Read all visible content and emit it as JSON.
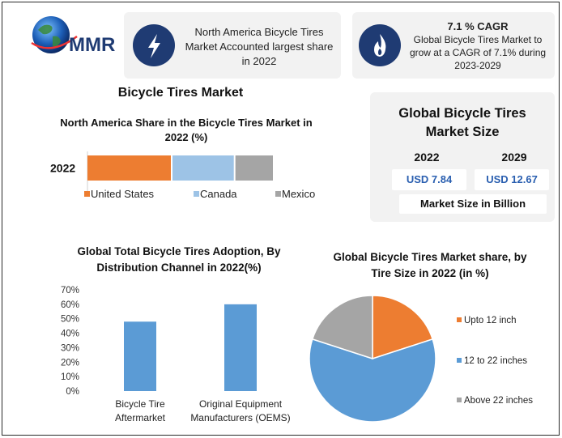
{
  "logo": {
    "text": "MMR"
  },
  "header_cards": [
    {
      "icon": "lightning-bolt-icon",
      "text": "North America Bicycle Tires Market Accounted largest share in 2022"
    },
    {
      "icon": "flame-icon",
      "title": "7.1 % CAGR",
      "text": "Global Bicycle Tires Market to grow at a CAGR of 7.1% during 2023-2029"
    }
  ],
  "main_title": "Bicycle Tires Market",
  "market_size": {
    "title": "Global Bicycle Tires Market Size",
    "year1": "2022",
    "year2": "2029",
    "value1": "USD 7.84",
    "value2": "USD 12.67",
    "unit": "Market Size in Billion"
  },
  "colors": {
    "orange": "#ed7d31",
    "light_blue": "#9dc3e6",
    "gray": "#a5a5a5",
    "blue": "#5b9bd5",
    "navy": "#1f3b73"
  },
  "chart_data": [
    {
      "type": "bar",
      "orientation": "horizontal-stacked",
      "title": "North America Share in the Bicycle Tires Market in 2022 (%)",
      "categories": [
        "2022"
      ],
      "series": [
        {
          "name": "United States",
          "values": [
            50
          ]
        },
        {
          "name": "Canada",
          "values": [
            37
          ]
        },
        {
          "name": "Mexico",
          "values": [
            23
          ]
        }
      ],
      "legend": "bottom"
    },
    {
      "type": "bar",
      "title": "Global Total Bicycle Tires Adoption, By Distribution Channel in 2022(%)",
      "categories": [
        "Bicycle Tire Aftermarket",
        "Original Equipment Manufacturers (OEMS)"
      ],
      "category_lines": [
        [
          "Bicycle Tire",
          "Aftermarket"
        ],
        [
          "Original Equipment",
          "Manufacturers (OEMS)"
        ]
      ],
      "values": [
        48,
        60
      ],
      "ylim": [
        0,
        70
      ],
      "yticks": [
        "0%",
        "10%",
        "20%",
        "30%",
        "40%",
        "50%",
        "60%",
        "70%"
      ],
      "grid": false
    },
    {
      "type": "pie",
      "title": "Global Bicycle Tires Market share, by Tire Size in 2022 (in %)",
      "labels": [
        "Upto 12 inch",
        "12 to 22 inches",
        "Above 22 inches"
      ],
      "values": [
        20,
        60,
        20
      ],
      "legend": "right"
    }
  ]
}
